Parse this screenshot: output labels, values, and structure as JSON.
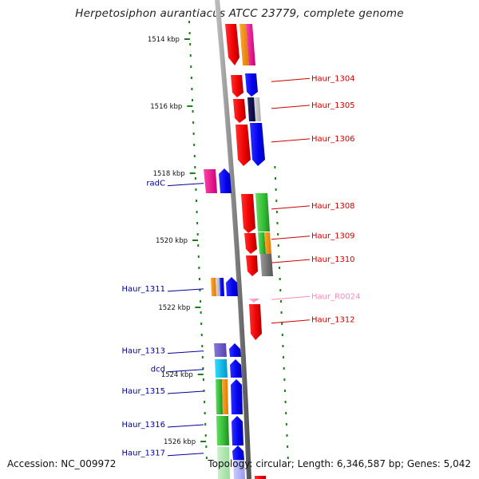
{
  "title": "Herpetosiphon aurantiacus ATCC 23779, complete genome",
  "footer": {
    "accession": "Accession: NC_009972",
    "summary": "Topology: circular; Length: 6,346,587 bp; Genes: 5,042"
  },
  "ticks": [
    {
      "label": "1514 kbp",
      "kbp": 1514
    },
    {
      "label": "1516 kbp",
      "kbp": 1516
    },
    {
      "label": "1518 kbp",
      "kbp": 1518
    },
    {
      "label": "1520 kbp",
      "kbp": 1520
    },
    {
      "label": "1522 kbp",
      "kbp": 1522
    },
    {
      "label": "1524 kbp",
      "kbp": 1524
    },
    {
      "label": "1526 kbp",
      "kbp": 1526
    }
  ],
  "colors": {
    "forward_label": "#cc0000",
    "reverse_label": "#000099",
    "rna_label": "#ff88bb",
    "backbone": "#888888",
    "ticks": "#1a7f1a"
  },
  "gene_labels": [
    {
      "text": "Haur_1304",
      "strand": "forward",
      "kbp": 1515.15
    },
    {
      "text": "Haur_1305",
      "strand": "forward",
      "kbp": 1515.95
    },
    {
      "text": "Haur_1306",
      "strand": "forward",
      "kbp": 1516.95
    },
    {
      "text": "radC",
      "strand": "reverse",
      "kbp": 1518.3
    },
    {
      "text": "Haur_1308",
      "strand": "forward",
      "kbp": 1518.95
    },
    {
      "text": "Haur_1309",
      "strand": "forward",
      "kbp": 1519.85
    },
    {
      "text": "Haur_1310",
      "strand": "forward",
      "kbp": 1520.55
    },
    {
      "text": "Haur_1311",
      "strand": "reverse",
      "kbp": 1521.45
    },
    {
      "text": "Haur_R0024",
      "strand": "rna",
      "kbp": 1521.65
    },
    {
      "text": "Haur_1312",
      "strand": "forward",
      "kbp": 1522.35
    },
    {
      "text": "Haur_1313",
      "strand": "reverse",
      "kbp": 1523.3
    },
    {
      "text": "dcd",
      "strand": "reverse",
      "kbp": 1523.85
    },
    {
      "text": "Haur_1315",
      "strand": "reverse",
      "kbp": 1524.5
    },
    {
      "text": "Haur_1316",
      "strand": "reverse",
      "kbp": 1525.5
    },
    {
      "text": "Haur_1317",
      "strand": "reverse",
      "kbp": 1526.35
    }
  ]
}
